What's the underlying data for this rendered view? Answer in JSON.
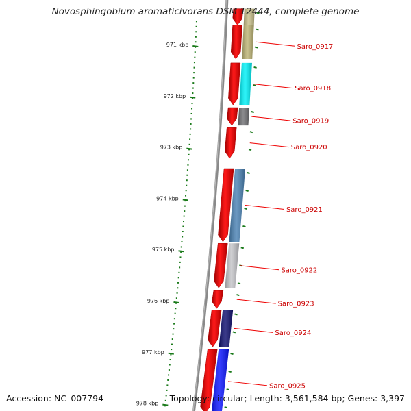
{
  "title": "Novosphingobium aromaticivorans DSM 12444, complete genome",
  "accession_text": "Accession: NC_007794",
  "topology_text": "Topology: circular; Length: 3,561,584 bp; Genes: 3,397",
  "kbp_ticks": [
    {
      "kbp": 971,
      "label": "971 kbp"
    },
    {
      "kbp": 972,
      "label": "972 kbp"
    },
    {
      "kbp": 973,
      "label": "973 kbp"
    },
    {
      "kbp": 974,
      "label": "974 kbp"
    },
    {
      "kbp": 975,
      "label": "975 kbp"
    },
    {
      "kbp": 976,
      "label": "976 kbp"
    },
    {
      "kbp": 977,
      "label": "977 kbp"
    },
    {
      "kbp": 978,
      "label": "978 kbp"
    }
  ],
  "genes": [
    {
      "label": "",
      "start_kbp": 970.3,
      "end_kbp": 970.62,
      "color": "#c8c08a"
    },
    {
      "label": "Saro_0917",
      "start_kbp": 970.62,
      "end_kbp": 971.28,
      "color": "#bdb474"
    },
    {
      "label": "Saro_0918",
      "start_kbp": 971.36,
      "end_kbp": 972.18,
      "color": "#00f2f8"
    },
    {
      "label": "Saro_0919",
      "start_kbp": 972.23,
      "end_kbp": 972.58,
      "color": "#707074"
    },
    {
      "label": "Saro_0920",
      "start_kbp": 972.62,
      "end_kbp": 973.22,
      "color": null
    },
    {
      "label": "Saro_0921",
      "start_kbp": 973.42,
      "end_kbp": 974.85,
      "color": "#4a82b4"
    },
    {
      "label": "Saro_0922",
      "start_kbp": 974.88,
      "end_kbp": 975.75,
      "color": "#c4c4c8"
    },
    {
      "label": "Saro_0923",
      "start_kbp": 975.8,
      "end_kbp": 976.15,
      "color": null
    },
    {
      "label": "Saro_0924",
      "start_kbp": 976.18,
      "end_kbp": 976.9,
      "color": "#101070"
    },
    {
      "label": "Saro_0925",
      "start_kbp": 976.95,
      "end_kbp": 978.2,
      "color": "#0a14ff"
    }
  ],
  "colors": {
    "backbone": "#8a8a8a",
    "gene_arrow": "#ff0000",
    "tick": "#1a7a1a",
    "label_text": "#cc0000",
    "label_line": "#ee0000"
  }
}
